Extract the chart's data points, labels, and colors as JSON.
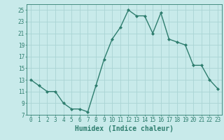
{
  "x": [
    0,
    1,
    2,
    3,
    4,
    5,
    6,
    7,
    8,
    9,
    10,
    11,
    12,
    13,
    14,
    15,
    16,
    17,
    18,
    19,
    20,
    21,
    22,
    23
  ],
  "y": [
    13,
    12,
    11,
    11,
    9,
    8,
    8,
    7.5,
    12,
    16.5,
    20,
    22,
    25,
    24,
    24,
    21,
    24.5,
    20,
    19.5,
    19,
    15.5,
    15.5,
    13,
    11.5
  ],
  "line_color": "#2e7d6e",
  "marker": "D",
  "marker_size": 2,
  "bg_color": "#c8eaea",
  "grid_color": "#aad4d4",
  "xlabel": "Humidex (Indice chaleur)",
  "xlim": [
    -0.5,
    23.5
  ],
  "ylim": [
    7,
    26
  ],
  "yticks": [
    7,
    9,
    11,
    13,
    15,
    17,
    19,
    21,
    23,
    25
  ],
  "xticks": [
    0,
    1,
    2,
    3,
    4,
    5,
    6,
    7,
    8,
    9,
    10,
    11,
    12,
    13,
    14,
    15,
    16,
    17,
    18,
    19,
    20,
    21,
    22,
    23
  ],
  "tick_label_fontsize": 5.5,
  "xlabel_fontsize": 7,
  "line_width": 1.0
}
